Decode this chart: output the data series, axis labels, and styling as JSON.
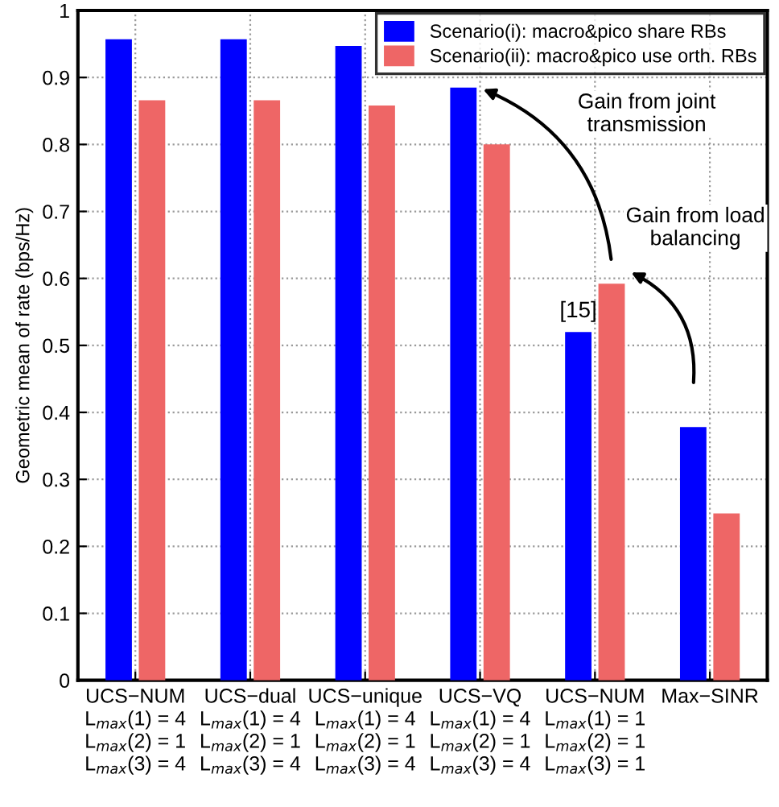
{
  "chart_data": {
    "type": "bar",
    "ylabel": "Geometric mean of rate (bps/Hz)",
    "categories": [
      "UCS−NUM\nL$_{max}$(1) = 4\nL$_{max}$(2) = 1\nL$_{max}$(3) = 4",
      "UCS−dual\nL$_{max}$(1) = 4\nL$_{max}$(2) = 1\nL$_{max}$(3) = 4",
      "UCS−unique\nL$_{max}$(1) = 4\nL$_{max}$(2) = 1\nL$_{max}$(3) = 4",
      "UCS−VQ\nL$_{max}$(1) = 4\nL$_{max}$(2) = 1\nL$_{max}$(3) = 4",
      "UCS−NUM\nL$_{max}$(1) = 1\nL$_{max}$(2) = 1\nL$_{max}$(3) = 1",
      "Max−SINR"
    ],
    "series": [
      {
        "name": "Scenario(i): macro&pico share RBs",
        "color": "#0000ff",
        "values": [
          0.957,
          0.957,
          0.947,
          0.885,
          0.52,
          0.378
        ]
      },
      {
        "name": "Scenario(ii): macro&pico use orth. RBs",
        "color": "#ee6666",
        "values": [
          0.866,
          0.866,
          0.858,
          0.8,
          0.592,
          0.249
        ]
      }
    ],
    "ylim": [
      0,
      1
    ],
    "yticks": [
      0,
      0.1,
      0.2,
      0.3,
      0.4,
      0.5,
      0.6,
      0.7,
      0.8,
      0.9,
      1
    ],
    "grid": true,
    "legend": "top right",
    "annotations": [
      "[15]",
      "Gain from joint\ntransmission",
      "Gain from load\nbalancing"
    ]
  }
}
